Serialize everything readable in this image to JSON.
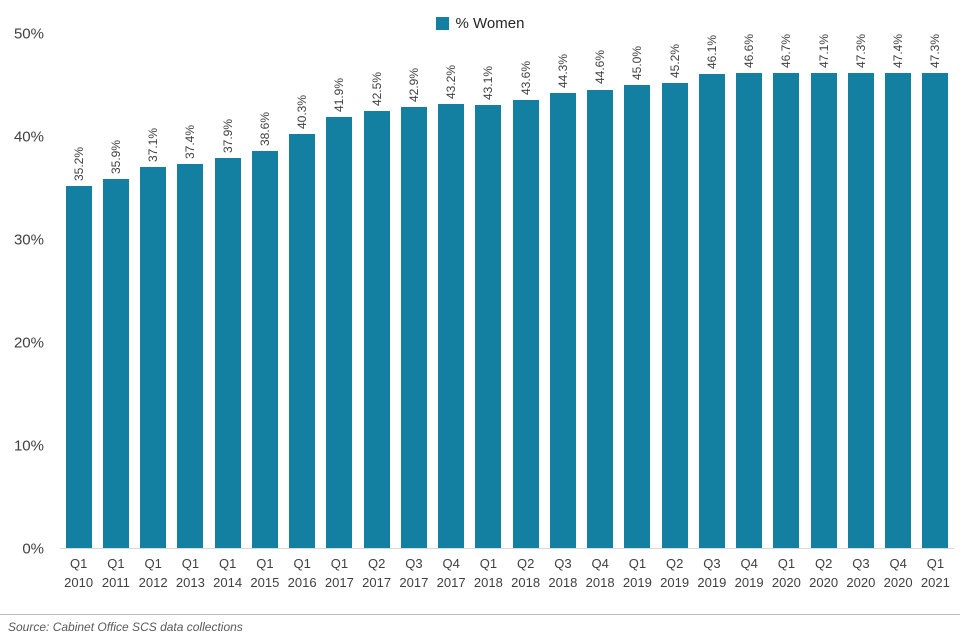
{
  "legend": {
    "label": "% Women",
    "color": "#1380A1"
  },
  "source": "Source: Cabinet Office SCS data collections",
  "chart_data": {
    "type": "bar",
    "title": "",
    "xlabel": "",
    "ylabel": "",
    "legend_position": "top-center",
    "grid": false,
    "bar_color": "#1380A1",
    "ylim": [
      0,
      50
    ],
    "yticks": [
      0,
      10,
      20,
      30,
      40,
      50
    ],
    "ytick_labels": [
      "0%",
      "10%",
      "20%",
      "30%",
      "40%",
      "50%"
    ],
    "categories": [
      {
        "quarter": "Q1",
        "year": "2010"
      },
      {
        "quarter": "Q1",
        "year": "2011"
      },
      {
        "quarter": "Q1",
        "year": "2012"
      },
      {
        "quarter": "Q1",
        "year": "2013"
      },
      {
        "quarter": "Q1",
        "year": "2014"
      },
      {
        "quarter": "Q1",
        "year": "2015"
      },
      {
        "quarter": "Q1",
        "year": "2016"
      },
      {
        "quarter": "Q1",
        "year": "2017"
      },
      {
        "quarter": "Q2",
        "year": "2017"
      },
      {
        "quarter": "Q3",
        "year": "2017"
      },
      {
        "quarter": "Q4",
        "year": "2017"
      },
      {
        "quarter": "Q1",
        "year": "2018"
      },
      {
        "quarter": "Q2",
        "year": "2018"
      },
      {
        "quarter": "Q3",
        "year": "2018"
      },
      {
        "quarter": "Q4",
        "year": "2018"
      },
      {
        "quarter": "Q1",
        "year": "2019"
      },
      {
        "quarter": "Q2",
        "year": "2019"
      },
      {
        "quarter": "Q3",
        "year": "2019"
      },
      {
        "quarter": "Q4",
        "year": "2019"
      },
      {
        "quarter": "Q1",
        "year": "2020"
      },
      {
        "quarter": "Q2",
        "year": "2020"
      },
      {
        "quarter": "Q3",
        "year": "2020"
      },
      {
        "quarter": "Q4",
        "year": "2020"
      },
      {
        "quarter": "Q1",
        "year": "2021"
      }
    ],
    "values": [
      35.2,
      35.9,
      37.1,
      37.4,
      37.9,
      38.6,
      40.3,
      41.9,
      42.5,
      42.9,
      43.2,
      43.1,
      43.6,
      44.3,
      44.6,
      45.0,
      45.2,
      46.1,
      46.6,
      46.7,
      47.1,
      47.3,
      47.4,
      47.3
    ],
    "value_labels": [
      "35.2%",
      "35.9%",
      "37.1%",
      "37.4%",
      "37.9%",
      "38.6%",
      "40.3%",
      "41.9%",
      "42.5%",
      "42.9%",
      "43.2%",
      "43.1%",
      "43.6%",
      "44.3%",
      "44.6%",
      "45.0%",
      "45.2%",
      "46.1%",
      "46.6%",
      "46.7%",
      "47.1%",
      "47.3%",
      "47.4%",
      "47.3%"
    ]
  }
}
